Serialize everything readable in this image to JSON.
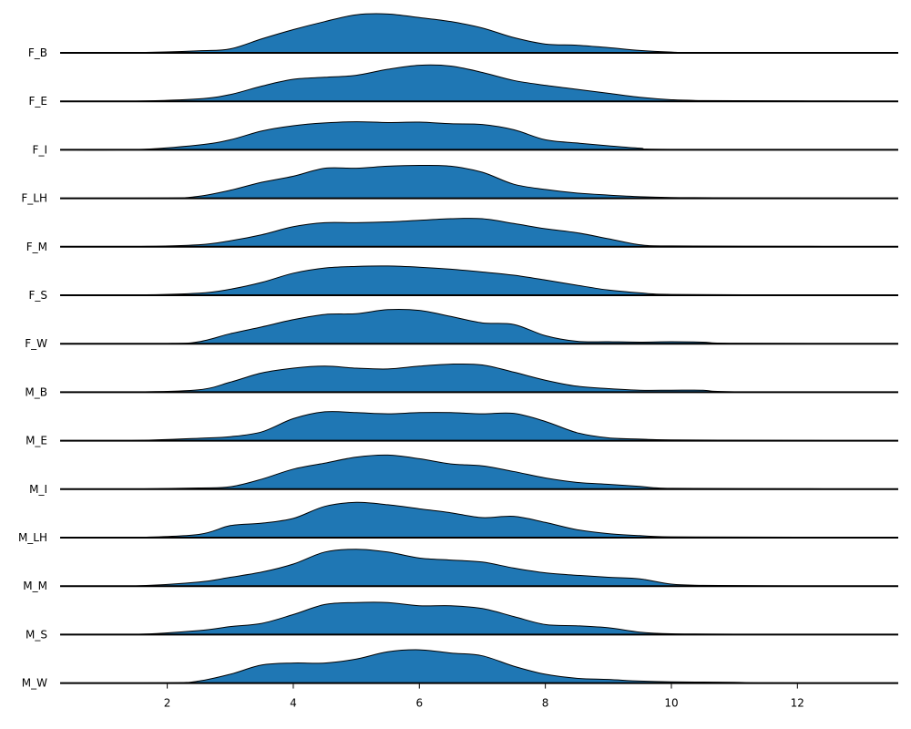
{
  "chart_data": {
    "type": "area",
    "title": "",
    "xlabel": "",
    "ylabel": "",
    "xlim": [
      0.3,
      13.6
    ],
    "x_ticks": [
      2,
      4,
      6,
      8,
      10,
      12
    ],
    "x_tick_labels": [
      "2",
      "4",
      "6",
      "8",
      "10",
      "12"
    ],
    "grid": false,
    "legend": "none",
    "fill_color": "#1f77b4",
    "line_color": "#000000",
    "density_max": 1.0,
    "series": [
      {
        "label": "F_B",
        "points": [
          [
            0.3,
            0
          ],
          [
            1.5,
            0.005
          ],
          [
            2.5,
            0.05
          ],
          [
            3,
            0.1
          ],
          [
            3.5,
            0.35
          ],
          [
            4,
            0.58
          ],
          [
            4.5,
            0.78
          ],
          [
            5,
            0.95
          ],
          [
            5.5,
            0.97
          ],
          [
            6,
            0.88
          ],
          [
            6.5,
            0.78
          ],
          [
            7,
            0.62
          ],
          [
            7.5,
            0.38
          ],
          [
            8,
            0.22
          ],
          [
            8.5,
            0.19
          ],
          [
            9,
            0.13
          ],
          [
            9.5,
            0.06
          ],
          [
            10,
            0.02
          ],
          [
            10.5,
            0.005
          ],
          [
            13.6,
            0
          ]
        ]
      },
      {
        "label": "F_E",
        "points": [
          [
            0.3,
            0
          ],
          [
            1.5,
            0.005
          ],
          [
            2.5,
            0.06
          ],
          [
            3,
            0.17
          ],
          [
            3.5,
            0.38
          ],
          [
            4,
            0.55
          ],
          [
            4.5,
            0.6
          ],
          [
            5,
            0.65
          ],
          [
            5.5,
            0.8
          ],
          [
            6,
            0.9
          ],
          [
            6.5,
            0.88
          ],
          [
            7,
            0.72
          ],
          [
            7.5,
            0.52
          ],
          [
            8,
            0.4
          ],
          [
            8.5,
            0.3
          ],
          [
            9,
            0.2
          ],
          [
            9.5,
            0.1
          ],
          [
            10,
            0.04
          ],
          [
            10.5,
            0.02
          ],
          [
            12,
            0.01
          ],
          [
            13.6,
            0
          ]
        ]
      },
      {
        "label": "F_I",
        "points": [
          [
            0.3,
            0
          ],
          [
            1.5,
            0.005
          ],
          [
            2.5,
            0.12
          ],
          [
            3,
            0.25
          ],
          [
            3.5,
            0.47
          ],
          [
            4,
            0.6
          ],
          [
            4.5,
            0.67
          ],
          [
            5,
            0.7
          ],
          [
            5.5,
            0.68
          ],
          [
            6,
            0.69
          ],
          [
            6.5,
            0.65
          ],
          [
            7,
            0.63
          ],
          [
            7.5,
            0.5
          ],
          [
            8,
            0.25
          ],
          [
            8.5,
            0.17
          ],
          [
            9,
            0.1
          ],
          [
            9.5,
            0.04
          ],
          [
            10,
            0.01
          ],
          [
            13.6,
            0
          ]
        ]
      },
      {
        "label": "F_LH",
        "points": [
          [
            0.3,
            0
          ],
          [
            2,
            0.005
          ],
          [
            2.5,
            0.05
          ],
          [
            3,
            0.2
          ],
          [
            3.5,
            0.4
          ],
          [
            4,
            0.55
          ],
          [
            4.5,
            0.75
          ],
          [
            5,
            0.75
          ],
          [
            5.5,
            0.8
          ],
          [
            6,
            0.82
          ],
          [
            6.5,
            0.8
          ],
          [
            7,
            0.65
          ],
          [
            7.5,
            0.35
          ],
          [
            8,
            0.22
          ],
          [
            8.5,
            0.13
          ],
          [
            9,
            0.08
          ],
          [
            9.5,
            0.04
          ],
          [
            10,
            0.02
          ],
          [
            11,
            0.01
          ],
          [
            13.6,
            0
          ]
        ]
      },
      {
        "label": "F_M",
        "points": [
          [
            0.3,
            0
          ],
          [
            1.5,
            0.005
          ],
          [
            2.5,
            0.05
          ],
          [
            3,
            0.15
          ],
          [
            3.5,
            0.3
          ],
          [
            4,
            0.5
          ],
          [
            4.5,
            0.6
          ],
          [
            5,
            0.6
          ],
          [
            5.5,
            0.62
          ],
          [
            6,
            0.66
          ],
          [
            6.5,
            0.7
          ],
          [
            7,
            0.7
          ],
          [
            7.5,
            0.58
          ],
          [
            8,
            0.45
          ],
          [
            8.5,
            0.35
          ],
          [
            9,
            0.2
          ],
          [
            9.5,
            0.05
          ],
          [
            10,
            0.02
          ],
          [
            12,
            0.01
          ],
          [
            13.6,
            0
          ]
        ]
      },
      {
        "label": "F_S",
        "points": [
          [
            0.3,
            0
          ],
          [
            1.5,
            0.005
          ],
          [
            2.5,
            0.05
          ],
          [
            3,
            0.15
          ],
          [
            3.5,
            0.32
          ],
          [
            4,
            0.55
          ],
          [
            4.5,
            0.68
          ],
          [
            5,
            0.72
          ],
          [
            5.5,
            0.73
          ],
          [
            6,
            0.7
          ],
          [
            6.5,
            0.65
          ],
          [
            7,
            0.58
          ],
          [
            7.5,
            0.5
          ],
          [
            8,
            0.38
          ],
          [
            8.5,
            0.25
          ],
          [
            9,
            0.13
          ],
          [
            9.5,
            0.06
          ],
          [
            10,
            0.02
          ],
          [
            12,
            0.01
          ],
          [
            13.6,
            0
          ]
        ]
      },
      {
        "label": "F_W",
        "points": [
          [
            0.3,
            0
          ],
          [
            2,
            0.005
          ],
          [
            2.5,
            0.05
          ],
          [
            3,
            0.25
          ],
          [
            3.5,
            0.42
          ],
          [
            4,
            0.6
          ],
          [
            4.5,
            0.73
          ],
          [
            5,
            0.75
          ],
          [
            5.5,
            0.85
          ],
          [
            6,
            0.83
          ],
          [
            6.5,
            0.68
          ],
          [
            7,
            0.52
          ],
          [
            7.5,
            0.48
          ],
          [
            8,
            0.2
          ],
          [
            8.5,
            0.06
          ],
          [
            9,
            0.05
          ],
          [
            9.5,
            0.04
          ],
          [
            10,
            0.05
          ],
          [
            10.5,
            0.04
          ],
          [
            11,
            0.01
          ],
          [
            13.6,
            0
          ]
        ]
      },
      {
        "label": "M_B",
        "points": [
          [
            0.3,
            0
          ],
          [
            1.5,
            0.005
          ],
          [
            2.5,
            0.06
          ],
          [
            3,
            0.25
          ],
          [
            3.5,
            0.48
          ],
          [
            4,
            0.6
          ],
          [
            4.5,
            0.65
          ],
          [
            5,
            0.6
          ],
          [
            5.5,
            0.58
          ],
          [
            6,
            0.65
          ],
          [
            6.5,
            0.7
          ],
          [
            7,
            0.68
          ],
          [
            7.5,
            0.5
          ],
          [
            8,
            0.3
          ],
          [
            8.5,
            0.15
          ],
          [
            9,
            0.09
          ],
          [
            9.5,
            0.05
          ],
          [
            10,
            0.05
          ],
          [
            10.5,
            0.05
          ],
          [
            11,
            0.01
          ],
          [
            13.6,
            0
          ]
        ]
      },
      {
        "label": "M_E",
        "points": [
          [
            0.3,
            0
          ],
          [
            1.5,
            0.005
          ],
          [
            2.5,
            0.06
          ],
          [
            3,
            0.1
          ],
          [
            3.5,
            0.22
          ],
          [
            4,
            0.55
          ],
          [
            4.5,
            0.72
          ],
          [
            5,
            0.7
          ],
          [
            5.5,
            0.67
          ],
          [
            6,
            0.7
          ],
          [
            6.5,
            0.7
          ],
          [
            7,
            0.67
          ],
          [
            7.5,
            0.68
          ],
          [
            8,
            0.48
          ],
          [
            8.5,
            0.2
          ],
          [
            9,
            0.07
          ],
          [
            9.5,
            0.04
          ],
          [
            10,
            0.02
          ],
          [
            12,
            0.005
          ],
          [
            13.6,
            0
          ]
        ]
      },
      {
        "label": "M_I",
        "points": [
          [
            0.3,
            0
          ],
          [
            1.5,
            0.005
          ],
          [
            2.5,
            0.03
          ],
          [
            3,
            0.06
          ],
          [
            3.5,
            0.25
          ],
          [
            4,
            0.5
          ],
          [
            4.5,
            0.65
          ],
          [
            5,
            0.8
          ],
          [
            5.5,
            0.85
          ],
          [
            6,
            0.76
          ],
          [
            6.5,
            0.63
          ],
          [
            7,
            0.58
          ],
          [
            7.5,
            0.44
          ],
          [
            8,
            0.28
          ],
          [
            8.5,
            0.17
          ],
          [
            9,
            0.12
          ],
          [
            9.5,
            0.07
          ],
          [
            10,
            0.02
          ],
          [
            12,
            0.01
          ],
          [
            13.6,
            0
          ]
        ]
      },
      {
        "label": "M_LH",
        "points": [
          [
            0.3,
            0
          ],
          [
            1.5,
            0.005
          ],
          [
            2.5,
            0.08
          ],
          [
            3,
            0.3
          ],
          [
            3.5,
            0.36
          ],
          [
            4,
            0.48
          ],
          [
            4.5,
            0.78
          ],
          [
            5,
            0.88
          ],
          [
            5.5,
            0.82
          ],
          [
            6,
            0.72
          ],
          [
            6.5,
            0.62
          ],
          [
            7,
            0.5
          ],
          [
            7.5,
            0.53
          ],
          [
            8,
            0.38
          ],
          [
            8.5,
            0.2
          ],
          [
            9,
            0.1
          ],
          [
            9.5,
            0.05
          ],
          [
            10,
            0.02
          ],
          [
            12,
            0.01
          ],
          [
            13.6,
            0
          ]
        ]
      },
      {
        "label": "M_M",
        "points": [
          [
            0.3,
            0
          ],
          [
            1.5,
            0.005
          ],
          [
            2.5,
            0.1
          ],
          [
            3,
            0.22
          ],
          [
            3.5,
            0.35
          ],
          [
            4,
            0.55
          ],
          [
            4.5,
            0.85
          ],
          [
            5,
            0.92
          ],
          [
            5.5,
            0.85
          ],
          [
            6,
            0.7
          ],
          [
            6.5,
            0.65
          ],
          [
            7,
            0.6
          ],
          [
            7.5,
            0.45
          ],
          [
            8,
            0.33
          ],
          [
            8.5,
            0.27
          ],
          [
            9,
            0.22
          ],
          [
            9.5,
            0.18
          ],
          [
            10,
            0.05
          ],
          [
            10.5,
            0.02
          ],
          [
            12,
            0.005
          ],
          [
            13.6,
            0
          ]
        ]
      },
      {
        "label": "M_S",
        "points": [
          [
            0.3,
            0
          ],
          [
            1.5,
            0.005
          ],
          [
            2.5,
            0.1
          ],
          [
            3,
            0.2
          ],
          [
            3.5,
            0.28
          ],
          [
            4,
            0.5
          ],
          [
            4.5,
            0.75
          ],
          [
            5,
            0.8
          ],
          [
            5.5,
            0.8
          ],
          [
            6,
            0.72
          ],
          [
            6.5,
            0.72
          ],
          [
            7,
            0.65
          ],
          [
            7.5,
            0.45
          ],
          [
            8,
            0.25
          ],
          [
            8.5,
            0.22
          ],
          [
            9,
            0.17
          ],
          [
            9.5,
            0.06
          ],
          [
            10,
            0.02
          ],
          [
            11,
            0.01
          ],
          [
            13.6,
            0
          ]
        ]
      },
      {
        "label": "M_W",
        "points": [
          [
            0.3,
            0
          ],
          [
            2,
            0.005
          ],
          [
            2.5,
            0.05
          ],
          [
            3,
            0.22
          ],
          [
            3.5,
            0.45
          ],
          [
            4,
            0.5
          ],
          [
            4.5,
            0.5
          ],
          [
            5,
            0.6
          ],
          [
            5.5,
            0.78
          ],
          [
            6,
            0.83
          ],
          [
            6.5,
            0.75
          ],
          [
            7,
            0.68
          ],
          [
            7.5,
            0.42
          ],
          [
            8,
            0.22
          ],
          [
            8.5,
            0.12
          ],
          [
            9,
            0.09
          ],
          [
            9.5,
            0.05
          ],
          [
            10,
            0.03
          ],
          [
            11,
            0.02
          ],
          [
            11.5,
            0.005
          ],
          [
            13.6,
            0
          ]
        ]
      }
    ]
  }
}
